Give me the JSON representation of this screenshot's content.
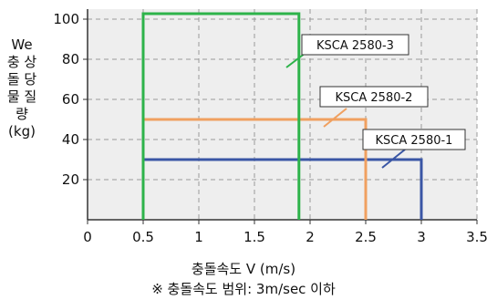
{
  "chart_data": {
    "type": "line",
    "title": "",
    "ylabel_lines": [
      "We",
      "충 상",
      "돌 당",
      "물 질",
      "량",
      "(kg)"
    ],
    "xlabel": "충돌속도 V (m/s)",
    "note": "※ 충돌속도 범위: 3m/sec 이하",
    "xlim": [
      0,
      3.5
    ],
    "ylim": [
      0,
      105
    ],
    "xticks": [
      "0",
      "0.5",
      "1",
      "1.5",
      "2",
      "2.5",
      "3",
      "3.5"
    ],
    "xtick_values": [
      0,
      0.5,
      1,
      1.5,
      2,
      2.5,
      3,
      3.5
    ],
    "yticks": [
      "20",
      "40",
      "60",
      "80",
      "100"
    ],
    "ytick_values": [
      20,
      40,
      60,
      80,
      100
    ],
    "grid": true,
    "series": [
      {
        "name": "KSCA 2580-1",
        "color": "#3a56a5",
        "x_range": [
          0.5,
          3.0
        ],
        "max_mass": 30
      },
      {
        "name": "KSCA 2580-2",
        "color": "#f0a060",
        "x_range": [
          0.5,
          2.5
        ],
        "max_mass": 50
      },
      {
        "name": "KSCA 2580-3",
        "color": "#2db34a",
        "x_range": [
          0.5,
          1.9
        ],
        "max_mass": 105
      }
    ]
  }
}
